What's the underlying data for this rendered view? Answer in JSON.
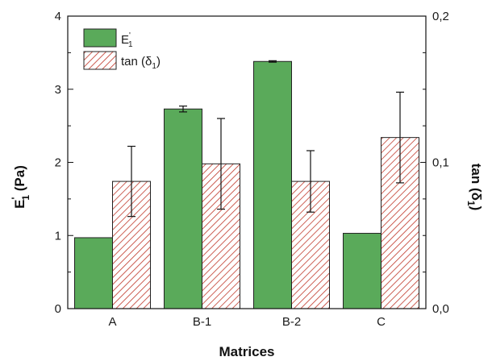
{
  "chart_data": {
    "type": "bar",
    "categories": [
      "A",
      "B-1",
      "B-2",
      "C"
    ],
    "series": [
      {
        "name": "E1'",
        "axis": "left",
        "values": [
          0.97,
          2.73,
          3.38,
          1.03
        ],
        "errors": [
          0.0,
          0.04,
          0.01,
          0.0
        ],
        "fill": "solid",
        "color": "#5aaa5a"
      },
      {
        "name": "tan (δ1)",
        "axis": "right",
        "values": [
          0.087,
          0.099,
          0.087,
          0.117
        ],
        "errors": [
          0.024,
          0.031,
          0.021,
          0.031
        ],
        "fill": "hatched",
        "color": "#c0392b"
      }
    ],
    "xlabel": "Matrices",
    "ylabel_left": "E'1 (Pa)",
    "ylabel_right": "tan (δ1)",
    "ylim_left": [
      0,
      4
    ],
    "ylim_right": [
      0,
      0.2
    ],
    "yticks_left": [
      "0",
      "1",
      "2",
      "3",
      "4"
    ],
    "yticks_right": [
      "0,0",
      "0,1",
      "0,2"
    ],
    "legend": {
      "position": "top-left",
      "entries": [
        {
          "main": "E",
          "sup": "'",
          "sub": "1"
        },
        {
          "main": "tan (δ",
          "sub": "1",
          "tail": ")"
        }
      ]
    },
    "grid": false
  }
}
